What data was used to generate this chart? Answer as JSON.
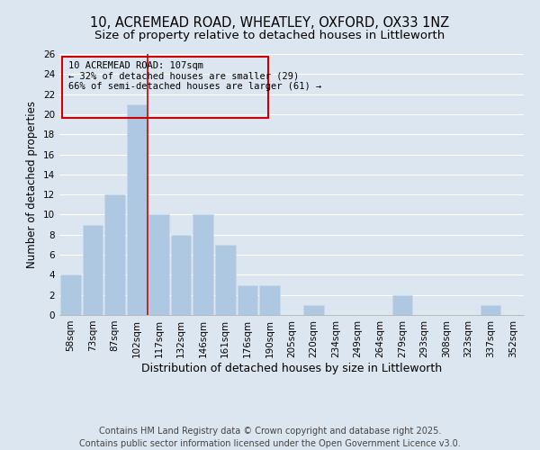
{
  "title": "10, ACREMEAD ROAD, WHEATLEY, OXFORD, OX33 1NZ",
  "subtitle": "Size of property relative to detached houses in Littleworth",
  "xlabel": "Distribution of detached houses by size in Littleworth",
  "ylabel": "Number of detached properties",
  "categories": [
    "58sqm",
    "73sqm",
    "87sqm",
    "102sqm",
    "117sqm",
    "132sqm",
    "146sqm",
    "161sqm",
    "176sqm",
    "190sqm",
    "205sqm",
    "220sqm",
    "234sqm",
    "249sqm",
    "264sqm",
    "279sqm",
    "293sqm",
    "308sqm",
    "323sqm",
    "337sqm",
    "352sqm"
  ],
  "values": [
    4,
    9,
    12,
    21,
    10,
    8,
    10,
    7,
    3,
    3,
    0,
    1,
    0,
    0,
    0,
    2,
    0,
    0,
    0,
    1,
    0
  ],
  "bar_color": "#adc8e0",
  "bar_edge_color": "#c8d8ea",
  "background_color": "#dce6f0",
  "grid_color": "#ffffff",
  "vline_x": 3.5,
  "vline_color": "#cc0000",
  "annotation_title": "10 ACREMEAD ROAD: 107sqm",
  "annotation_line1": "← 32% of detached houses are smaller (29)",
  "annotation_line2": "66% of semi-detached houses are larger (61) →",
  "annotation_box_color": "#cc0000",
  "ylim": [
    0,
    26
  ],
  "yticks": [
    0,
    2,
    4,
    6,
    8,
    10,
    12,
    14,
    16,
    18,
    20,
    22,
    24,
    26
  ],
  "footer_line1": "Contains HM Land Registry data © Crown copyright and database right 2025.",
  "footer_line2": "Contains public sector information licensed under the Open Government Licence v3.0.",
  "title_fontsize": 10.5,
  "subtitle_fontsize": 9.5,
  "xlabel_fontsize": 9,
  "ylabel_fontsize": 8.5,
  "tick_fontsize": 7.5,
  "annotation_fontsize": 7.5,
  "footer_fontsize": 7
}
